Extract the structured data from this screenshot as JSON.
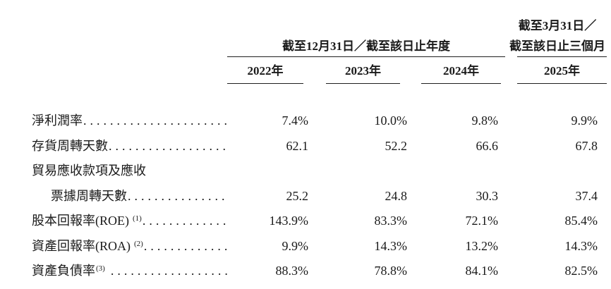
{
  "table": {
    "group_header_annual": "截至12月31日／截至該日止年度",
    "group_header_quarter_line1": "截至3月31日／",
    "group_header_quarter_line2": "截至該日止三個月",
    "year_columns": [
      "2022年",
      "2023年",
      "2024年",
      "2025年"
    ],
    "leader_dots": "........................................",
    "rows": [
      {
        "label": "淨利潤率",
        "sup": "",
        "values": [
          "7.4%",
          "10.0%",
          "9.8%",
          "9.9%"
        ]
      },
      {
        "label": "存貨周轉天數",
        "sup": "",
        "values": [
          "62.1",
          "52.2",
          "66.6",
          "67.8"
        ]
      },
      {
        "label": "貿易應收款項及應收",
        "sup": "",
        "values": [
          "",
          "",
          "",
          ""
        ]
      },
      {
        "label": "票據周轉天數",
        "sup": "",
        "values": [
          "25.2",
          "24.8",
          "30.3",
          "37.4"
        ]
      },
      {
        "label": "股本回報率(ROE)",
        "sup": "(1)",
        "values": [
          "143.9%",
          "83.3%",
          "72.1%",
          "85.4%"
        ]
      },
      {
        "label": "資產回報率(ROA)",
        "sup": "(2)",
        "values": [
          "9.9%",
          "14.3%",
          "13.2%",
          "14.3%"
        ]
      },
      {
        "label": "資產負債率",
        "sup": "(3)",
        "values": [
          "88.3%",
          "78.8%",
          "84.1%",
          "82.5%"
        ]
      }
    ]
  },
  "colors": {
    "text": "#1a1a1a",
    "rule": "#1f1f1f",
    "background": "#ffffff"
  }
}
